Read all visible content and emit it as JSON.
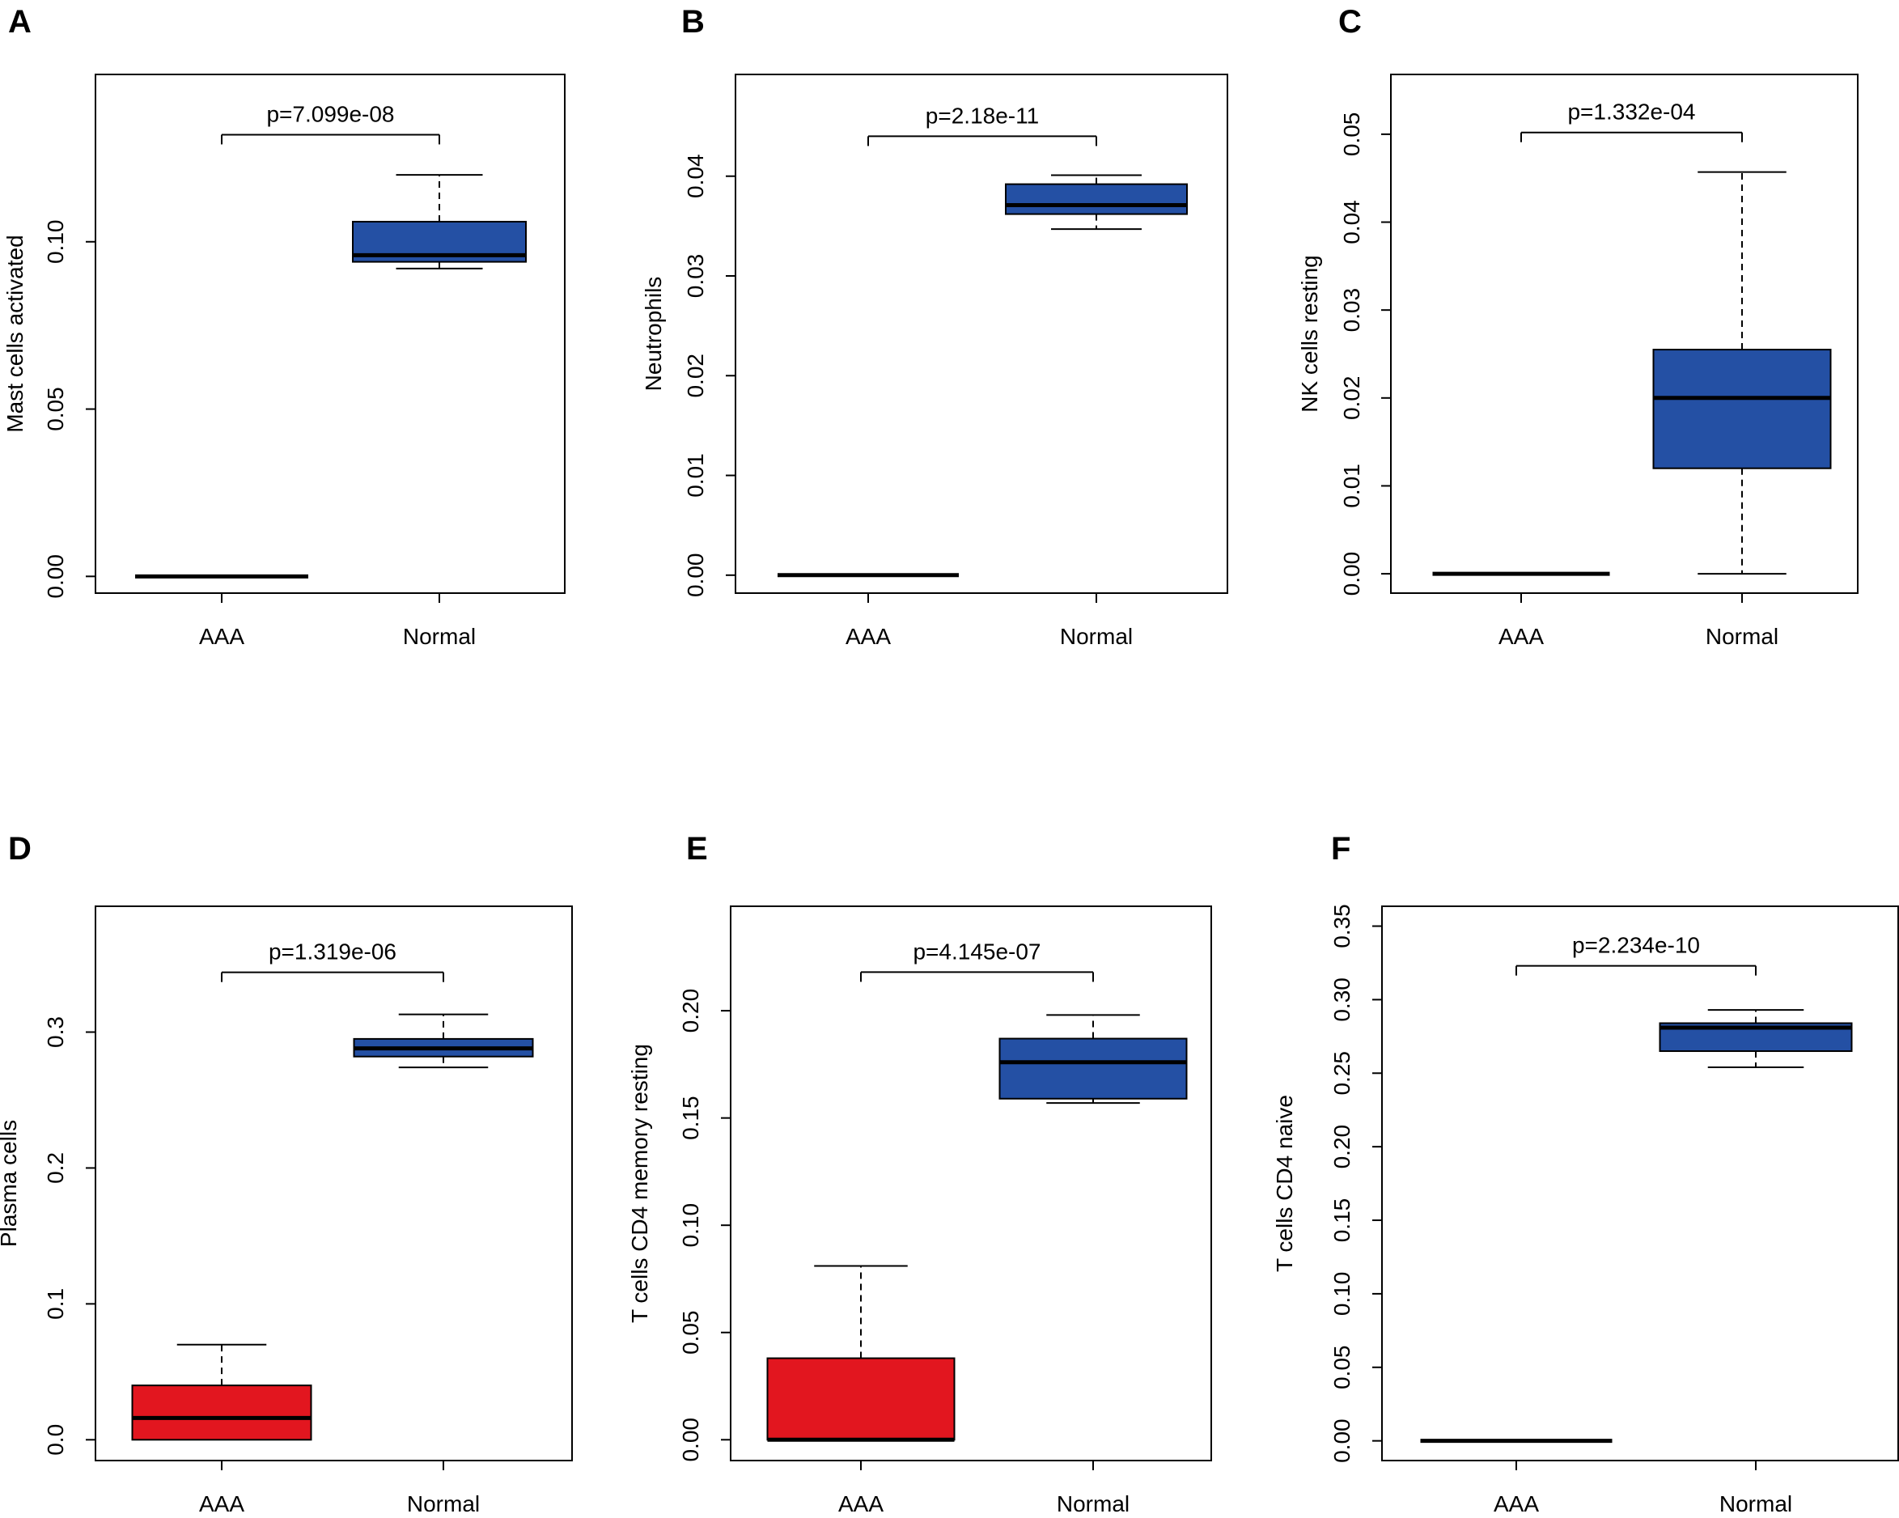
{
  "colors": {
    "aaa": "#E2161F",
    "normal": "#2450A4",
    "line": "#000000"
  },
  "chart_data": [
    {
      "panel": "A",
      "type": "box",
      "ylabel": "Mast cells activated",
      "categories": [
        "AAA",
        "Normal"
      ],
      "pvalue": "p=7.099e-08",
      "ylim": [
        -0.005,
        0.15
      ],
      "yticks": [
        "0.00",
        "0.05",
        "0.10"
      ],
      "ytick_values": [
        0,
        0.05,
        0.1
      ],
      "bracket_y": 0.132,
      "boxes": [
        {
          "group": "AAA",
          "min": 0,
          "q1": 0,
          "median": 0,
          "q3": 0,
          "max": 0
        },
        {
          "group": "Normal",
          "min": 0.092,
          "q1": 0.094,
          "median": 0.096,
          "q3": 0.106,
          "max": 0.12
        }
      ]
    },
    {
      "panel": "B",
      "type": "box",
      "ylabel": "Neutrophils",
      "categories": [
        "AAA",
        "Normal"
      ],
      "pvalue": "p=2.18e-11",
      "ylim": [
        -0.0018,
        0.0502
      ],
      "yticks": [
        "0.00",
        "0.01",
        "0.02",
        "0.03",
        "0.04"
      ],
      "ytick_values": [
        0,
        0.01,
        0.02,
        0.03,
        0.04
      ],
      "bracket_y": 0.044,
      "boxes": [
        {
          "group": "AAA",
          "min": 0,
          "q1": 0,
          "median": 0,
          "q3": 0,
          "max": 0
        },
        {
          "group": "Normal",
          "min": 0.0347,
          "q1": 0.0362,
          "median": 0.0371,
          "q3": 0.0392,
          "max": 0.0401
        }
      ]
    },
    {
      "panel": "C",
      "type": "box",
      "ylabel": "NK cells resting",
      "categories": [
        "AAA",
        "Normal"
      ],
      "pvalue": "p=1.332e-04",
      "ylim": [
        -0.0022,
        0.0568
      ],
      "yticks": [
        "0.00",
        "0.01",
        "0.02",
        "0.03",
        "0.04",
        "0.05"
      ],
      "ytick_values": [
        0,
        0.01,
        0.02,
        0.03,
        0.04,
        0.05
      ],
      "bracket_y": 0.0502,
      "boxes": [
        {
          "group": "AAA",
          "min": 0,
          "q1": 0,
          "median": 0,
          "q3": 0,
          "max": 0
        },
        {
          "group": "Normal",
          "min": 0,
          "q1": 0.012,
          "median": 0.02,
          "q3": 0.0255,
          "max": 0.0457
        }
      ]
    },
    {
      "panel": "D",
      "type": "box",
      "ylabel": "Plasma cells",
      "categories": [
        "AAA",
        "Normal"
      ],
      "pvalue": "p=1.319e-06",
      "ylim": [
        -0.0153,
        0.3926
      ],
      "yticks": [
        "0.0",
        "0.1",
        "0.2",
        "0.3"
      ],
      "ytick_values": [
        0,
        0.1,
        0.2,
        0.3
      ],
      "bracket_y": 0.344,
      "boxes": [
        {
          "group": "AAA",
          "min": 0,
          "q1": 0,
          "median": 0.016,
          "q3": 0.04,
          "max": 0.07
        },
        {
          "group": "Normal",
          "min": 0.274,
          "q1": 0.282,
          "median": 0.288,
          "q3": 0.295,
          "max": 0.313
        }
      ]
    },
    {
      "panel": "E",
      "type": "box",
      "ylabel": "T cells CD4 memory resting",
      "categories": [
        "AAA",
        "Normal"
      ],
      "pvalue": "p=4.145e-07",
      "ylim": [
        -0.0097,
        0.2487
      ],
      "yticks": [
        "0.00",
        "0.05",
        "0.10",
        "0.15",
        "0.20"
      ],
      "ytick_values": [
        0,
        0.05,
        0.1,
        0.15,
        0.2
      ],
      "bracket_y": 0.218,
      "boxes": [
        {
          "group": "AAA",
          "min": 0,
          "q1": 0,
          "median": 0,
          "q3": 0.038,
          "max": 0.081
        },
        {
          "group": "Normal",
          "min": 0.157,
          "q1": 0.159,
          "median": 0.176,
          "q3": 0.187,
          "max": 0.198
        }
      ]
    },
    {
      "panel": "F",
      "type": "box",
      "ylabel": "T cells CD4 naive",
      "categories": [
        "AAA",
        "Normal"
      ],
      "pvalue": "p=2.234e-10",
      "ylim": [
        -0.0134,
        0.3635
      ],
      "yticks": [
        "0.00",
        "0.05",
        "0.10",
        "0.15",
        "0.20",
        "0.25",
        "0.30",
        "0.35"
      ],
      "ytick_values": [
        0,
        0.05,
        0.1,
        0.15,
        0.2,
        0.25,
        0.3,
        0.35
      ],
      "bracket_y": 0.323,
      "boxes": [
        {
          "group": "AAA",
          "min": 0,
          "q1": 0,
          "median": 0,
          "q3": 0,
          "max": 0
        },
        {
          "group": "Normal",
          "min": 0.254,
          "q1": 0.265,
          "median": 0.281,
          "q3": 0.284,
          "max": 0.293
        }
      ]
    }
  ]
}
